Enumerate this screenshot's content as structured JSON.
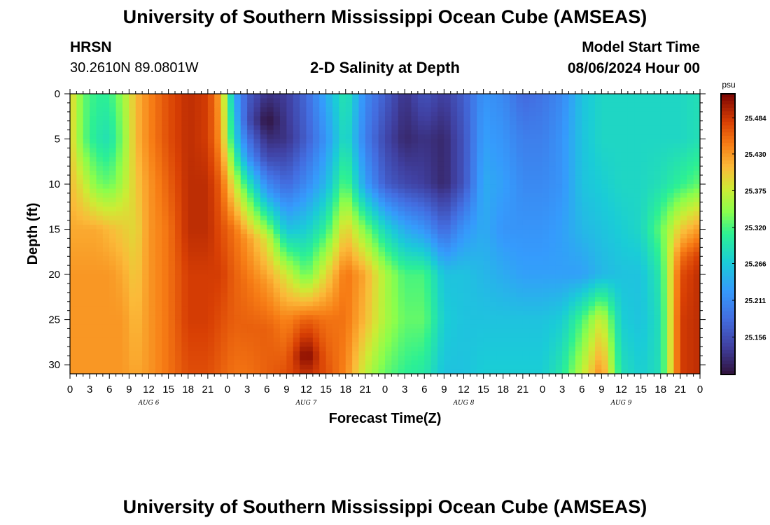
{
  "header": {
    "title": "University of Southern Mississippi Ocean Cube (AMSEAS)",
    "station": "HRSN",
    "coords": "30.2610N  89.0801W",
    "plot_title": "2-D Salinity at Depth",
    "model_label": "Model Start Time",
    "model_time": "08/06/2024 Hour 00"
  },
  "footer": {
    "title": "University of Southern Mississippi Ocean Cube (AMSEAS)"
  },
  "chart_data": {
    "type": "heatmap",
    "title": "2-D Salinity at Depth",
    "xlabel": "Forecast Time(Z)",
    "ylabel": "Depth (ft)",
    "x_tick_labels": [
      "0",
      "3",
      "6",
      "9",
      "12",
      "15",
      "18",
      "21",
      "0",
      "3",
      "6",
      "9",
      "12",
      "15",
      "18",
      "21",
      "0",
      "3",
      "6",
      "9",
      "12",
      "15",
      "18",
      "21",
      "0",
      "3",
      "6",
      "9",
      "12",
      "15",
      "18",
      "21",
      "0"
    ],
    "date_labels": [
      "AUG 6",
      "AUG 7",
      "AUG 8",
      "AUG 9"
    ],
    "y_ticks": [
      0,
      5,
      10,
      15,
      20,
      25,
      30
    ],
    "ylim": [
      0,
      31
    ],
    "y_inverted": true,
    "xlim_hours": [
      0,
      96
    ],
    "colorbar": {
      "unit": "psu",
      "tick_labels": [
        "25.484",
        "25.430",
        "25.375",
        "25.320",
        "25.266",
        "25.211",
        "25.156"
      ],
      "range": [
        25.1,
        25.52
      ]
    },
    "columns": [
      {
        "hour": 0,
        "depth": [
          0,
          5,
          10,
          15,
          20,
          25,
          31
        ],
        "value": [
          25.4,
          25.4,
          25.41,
          25.42,
          25.43,
          25.43,
          25.43
        ]
      },
      {
        "hour": 2,
        "depth": [
          0,
          5,
          10,
          15,
          20,
          25,
          31
        ],
        "value": [
          25.33,
          25.33,
          25.38,
          25.42,
          25.43,
          25.43,
          25.43
        ]
      },
      {
        "hour": 4,
        "depth": [
          0,
          5,
          10,
          15,
          20,
          25,
          31
        ],
        "value": [
          25.31,
          25.3,
          25.34,
          25.42,
          25.43,
          25.43,
          25.43
        ]
      },
      {
        "hour": 6,
        "depth": [
          0,
          5,
          10,
          15,
          20,
          25,
          31
        ],
        "value": [
          25.31,
          25.29,
          25.33,
          25.41,
          25.43,
          25.43,
          25.43
        ]
      },
      {
        "hour": 8,
        "depth": [
          0,
          5,
          10,
          15,
          20,
          25,
          31
        ],
        "value": [
          25.35,
          25.34,
          25.36,
          25.4,
          25.42,
          25.43,
          25.43
        ]
      },
      {
        "hour": 10,
        "depth": [
          0,
          5,
          10,
          15,
          20,
          25,
          31
        ],
        "value": [
          25.41,
          25.41,
          25.4,
          25.39,
          25.4,
          25.41,
          25.42
        ]
      },
      {
        "hour": 12,
        "depth": [
          0,
          5,
          10,
          15,
          20,
          25,
          31
        ],
        "value": [
          25.44,
          25.44,
          25.43,
          25.43,
          25.43,
          25.43,
          25.43
        ]
      },
      {
        "hour": 15,
        "depth": [
          0,
          5,
          10,
          15,
          20,
          25,
          31
        ],
        "value": [
          25.47,
          25.47,
          25.46,
          25.45,
          25.45,
          25.45,
          25.45
        ]
      },
      {
        "hour": 18,
        "depth": [
          0,
          5,
          10,
          15,
          20,
          25,
          31
        ],
        "value": [
          25.49,
          25.49,
          25.49,
          25.49,
          25.48,
          25.48,
          25.47
        ]
      },
      {
        "hour": 21,
        "depth": [
          0,
          5,
          10,
          15,
          20,
          25,
          31
        ],
        "value": [
          25.48,
          25.48,
          25.49,
          25.49,
          25.48,
          25.48,
          25.47
        ]
      },
      {
        "hour": 23,
        "depth": [
          0,
          5,
          10,
          15,
          20,
          25,
          31
        ],
        "value": [
          25.42,
          25.43,
          25.46,
          25.47,
          25.48,
          25.47,
          25.46
        ]
      },
      {
        "hour": 25,
        "depth": [
          0,
          5,
          10,
          15,
          20,
          25,
          31
        ],
        "value": [
          25.24,
          25.28,
          25.38,
          25.45,
          25.46,
          25.46,
          25.45
        ]
      },
      {
        "hour": 27,
        "depth": [
          0,
          3,
          7,
          11,
          16,
          21,
          26,
          31
        ],
        "value": [
          25.17,
          25.16,
          25.22,
          25.33,
          25.43,
          25.45,
          25.46,
          25.45
        ]
      },
      {
        "hour": 30,
        "depth": [
          0,
          3,
          7,
          11,
          16,
          21,
          26,
          31
        ],
        "value": [
          25.13,
          25.1,
          25.15,
          25.23,
          25.38,
          25.43,
          25.46,
          25.46
        ]
      },
      {
        "hour": 33,
        "depth": [
          0,
          5,
          10,
          15,
          20,
          25,
          31
        ],
        "value": [
          25.14,
          25.13,
          25.18,
          25.26,
          25.38,
          25.44,
          25.47
        ]
      },
      {
        "hour": 36,
        "depth": [
          0,
          5,
          10,
          15,
          20,
          25,
          29,
          31
        ],
        "value": [
          25.18,
          25.17,
          25.21,
          25.27,
          25.33,
          25.46,
          25.52,
          25.49
        ]
      },
      {
        "hour": 39,
        "depth": [
          0,
          5,
          10,
          15,
          20,
          25,
          31
        ],
        "value": [
          25.24,
          25.22,
          25.25,
          25.31,
          25.39,
          25.45,
          25.47
        ]
      },
      {
        "hour": 42,
        "depth": [
          0,
          5,
          10,
          15,
          20,
          25,
          31
        ],
        "value": [
          25.3,
          25.29,
          25.33,
          25.4,
          25.45,
          25.45,
          25.44
        ]
      },
      {
        "hour": 45,
        "depth": [
          0,
          5,
          10,
          15,
          20,
          25,
          31
        ],
        "value": [
          25.21,
          25.2,
          25.23,
          25.34,
          25.42,
          25.41,
          25.37
        ]
      },
      {
        "hour": 48,
        "depth": [
          0,
          5,
          10,
          15,
          20,
          25,
          31
        ],
        "value": [
          25.17,
          25.15,
          25.17,
          25.28,
          25.36,
          25.36,
          25.33
        ]
      },
      {
        "hour": 51,
        "depth": [
          0,
          5,
          10,
          15,
          20,
          25,
          31
        ],
        "value": [
          25.13,
          25.12,
          25.15,
          25.24,
          25.32,
          25.33,
          25.31
        ]
      },
      {
        "hour": 54,
        "depth": [
          0,
          5,
          10,
          15,
          20,
          25,
          31
        ],
        "value": [
          25.16,
          25.13,
          25.14,
          25.22,
          25.32,
          25.33,
          25.3
        ]
      },
      {
        "hour": 57,
        "depth": [
          0,
          5,
          10,
          15,
          20,
          25,
          31
        ],
        "value": [
          25.14,
          25.12,
          25.12,
          25.18,
          25.26,
          25.27,
          25.26
        ]
      },
      {
        "hour": 60,
        "depth": [
          0,
          5,
          10,
          15,
          20,
          25,
          31
        ],
        "value": [
          25.17,
          25.16,
          25.16,
          25.22,
          25.26,
          25.26,
          25.26
        ]
      },
      {
        "hour": 63,
        "depth": [
          0,
          5,
          10,
          15,
          20,
          25,
          31
        ],
        "value": [
          25.22,
          25.23,
          25.24,
          25.24,
          25.25,
          25.26,
          25.27
        ]
      },
      {
        "hour": 66,
        "depth": [
          0,
          5,
          10,
          15,
          20,
          25,
          31
        ],
        "value": [
          25.21,
          25.22,
          25.23,
          25.22,
          25.24,
          25.26,
          25.27
        ]
      },
      {
        "hour": 69,
        "depth": [
          0,
          5,
          10,
          15,
          20,
          25,
          31
        ],
        "value": [
          25.18,
          25.2,
          25.21,
          25.22,
          25.23,
          25.26,
          25.27
        ]
      },
      {
        "hour": 72,
        "depth": [
          0,
          5,
          10,
          15,
          20,
          25,
          31
        ],
        "value": [
          25.19,
          25.2,
          25.21,
          25.22,
          25.23,
          25.26,
          25.27
        ]
      },
      {
        "hour": 75,
        "depth": [
          0,
          5,
          10,
          15,
          20,
          25,
          31
        ],
        "value": [
          25.21,
          25.22,
          25.22,
          25.23,
          25.23,
          25.27,
          25.3
        ]
      },
      {
        "hour": 78,
        "depth": [
          0,
          5,
          10,
          15,
          20,
          25,
          31
        ],
        "value": [
          25.26,
          25.26,
          25.26,
          25.25,
          25.23,
          25.32,
          25.37
        ]
      },
      {
        "hour": 81,
        "depth": [
          0,
          5,
          10,
          15,
          20,
          25,
          31
        ],
        "value": [
          25.28,
          25.28,
          25.27,
          25.26,
          25.25,
          25.38,
          25.44
        ]
      },
      {
        "hour": 84,
        "depth": [
          0,
          5,
          10,
          15,
          20,
          25,
          31
        ],
        "value": [
          25.28,
          25.28,
          25.28,
          25.27,
          25.26,
          25.27,
          25.29
        ]
      },
      {
        "hour": 87,
        "depth": [
          0,
          5,
          10,
          15,
          20,
          25,
          31
        ],
        "value": [
          25.28,
          25.28,
          25.28,
          25.28,
          25.26,
          25.26,
          25.27
        ]
      },
      {
        "hour": 90,
        "depth": [
          0,
          5,
          10,
          15,
          20,
          25,
          31
        ],
        "value": [
          25.28,
          25.28,
          25.29,
          25.33,
          25.3,
          25.29,
          25.29
        ]
      },
      {
        "hour": 93,
        "depth": [
          0,
          5,
          10,
          15,
          18,
          20,
          25,
          31
        ],
        "value": [
          25.28,
          25.28,
          25.31,
          25.4,
          25.45,
          25.47,
          25.48,
          25.48
        ]
      },
      {
        "hour": 96,
        "depth": [
          0,
          5,
          10,
          15,
          18,
          20,
          25,
          31
        ],
        "value": [
          25.29,
          25.29,
          25.33,
          25.43,
          25.48,
          25.49,
          25.49,
          25.49
        ]
      }
    ]
  }
}
